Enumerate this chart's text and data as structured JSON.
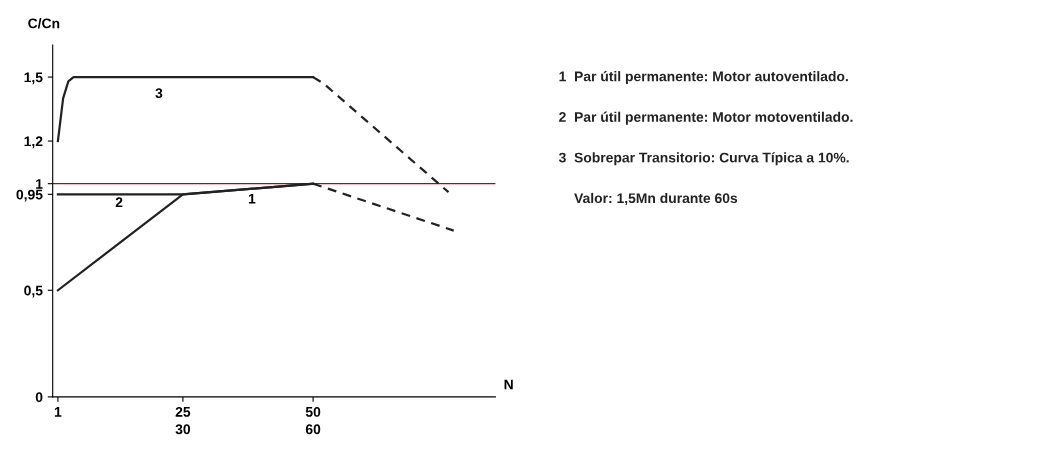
{
  "chart_data": {
    "type": "line",
    "ylabel": "C/Cn",
    "xlabel": "N",
    "xlim": [
      0,
      85
    ],
    "ylim": [
      0,
      1.65
    ],
    "xticks": [
      1,
      25,
      50
    ],
    "x2lim": [
      0,
      102
    ],
    "x2ticks": [
      30,
      60
    ],
    "yticks": [
      0,
      {
        "value": 0.5,
        "label": "0,5"
      },
      {
        "value": 0.95,
        "label": "0,95"
      },
      1,
      {
        "value": 1.2,
        "label": "1,2"
      },
      {
        "value": 1.5,
        "label": "1,5"
      }
    ],
    "grid": false,
    "legend": false,
    "marker": "none",
    "series": [
      {
        "color": "#222222",
        "line_style": "solid",
        "x": [
          1,
          25,
          50
        ],
        "values": [
          0.5,
          0.95,
          1
        ]
      },
      {
        "color": "#222222",
        "line_style": "solid",
        "x": [
          1,
          25,
          50
        ],
        "values": [
          0.95,
          0.95,
          1
        ]
      },
      {
        "color": "#222222",
        "line_style": "solid",
        "x": [
          1,
          2,
          3,
          4,
          50
        ],
        "values": [
          1.2,
          1.4,
          1.48,
          1.5,
          1.5
        ]
      },
      {
        "color": "#222222",
        "line_style": "dashed",
        "x": [
          50,
          77
        ],
        "values": [
          1,
          0.78
        ]
      },
      {
        "color": "#222222",
        "line_style": "dashed",
        "x": [
          50,
          52,
          76
        ],
        "values": [
          1.5,
          1.47,
          0.96
        ]
      }
    ],
    "ref_lines": [
      {
        "axis": "y",
        "value": 1,
        "color": "#a01010",
        "line_style": "solid"
      }
    ],
    "annotations": [
      "3",
      "2",
      "1",
      "1  Par útil permanente: Motor autoventilado.",
      "2  Par útil permanente: Motor motoventilado.",
      "3  Sobrepar Transitorio: Curva Típica a 10%.",
      "    Valor: 1,5Mn durante 60s"
    ]
  }
}
